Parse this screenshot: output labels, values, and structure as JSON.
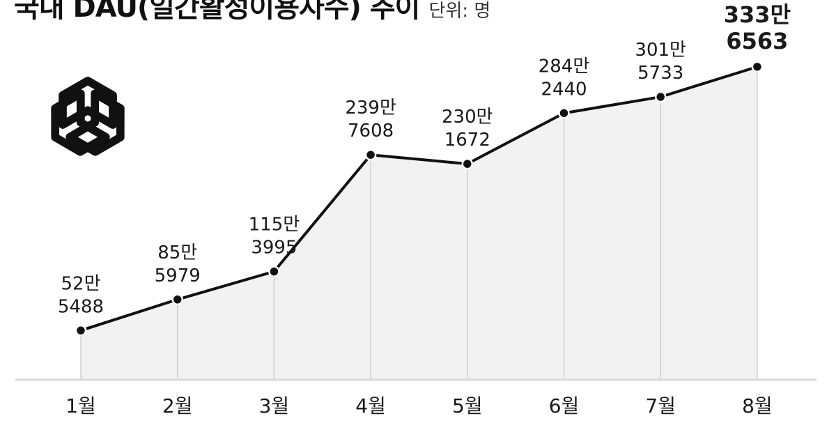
{
  "title": "국내 DAU(일간활성이용자수) 추이",
  "unit": "단위: 명",
  "logo_icon": "openai-logo-icon",
  "chart_data": {
    "type": "area",
    "title": "국내 DAU(일간활성이용자수) 추이",
    "unit": "단위: 명",
    "categories": [
      "1월",
      "2월",
      "3월",
      "4월",
      "5월",
      "6월",
      "7월",
      "8월"
    ],
    "values": [
      525488,
      855979,
      1153995,
      2397608,
      2301672,
      2842440,
      3015733,
      3336563
    ],
    "labels": [
      [
        "52만",
        "5488"
      ],
      [
        "85만",
        "5979"
      ],
      [
        "115만",
        "3995"
      ],
      [
        "239만",
        "7608"
      ],
      [
        "230만",
        "1672"
      ],
      [
        "284만",
        "2440"
      ],
      [
        "301만",
        "5733"
      ],
      [
        "333만",
        "6563"
      ]
    ],
    "ylim": [
      0,
      3900000
    ],
    "line_color": "#111111",
    "fill_color": "#f2f2f2",
    "grid": false,
    "legend": "none"
  }
}
